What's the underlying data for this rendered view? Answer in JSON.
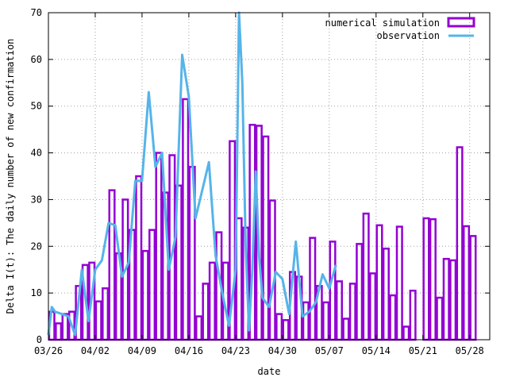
{
  "chart_data": {
    "type": "bar",
    "xlabel": "date",
    "ylabel": "Delta I(t): The daily number of new confirmation",
    "ylim": [
      0,
      70
    ],
    "yticks": [
      0,
      10,
      20,
      30,
      40,
      50,
      60,
      70
    ],
    "xlim_days": [
      0,
      66
    ],
    "xticks": [
      {
        "day": 0,
        "label": "03/26"
      },
      {
        "day": 7,
        "label": "04/02"
      },
      {
        "day": 14,
        "label": "04/09"
      },
      {
        "day": 21,
        "label": "04/16"
      },
      {
        "day": 28,
        "label": "04/23"
      },
      {
        "day": 35,
        "label": "04/30"
      },
      {
        "day": 42,
        "label": "05/07"
      },
      {
        "day": 49,
        "label": "05/14"
      },
      {
        "day": 56,
        "label": "05/21"
      },
      {
        "day": 63,
        "label": "05/28"
      }
    ],
    "grid": true,
    "legend_position": "top-right",
    "series": [
      {
        "name": "numerical simulation",
        "style": "boxes",
        "color": "#9400d3",
        "values": [
          6,
          3.5,
          5.5,
          6,
          11.5,
          16,
          16.5,
          8.2,
          11,
          32,
          18.5,
          30,
          23.5,
          35,
          19,
          23.5,
          40,
          31.5,
          39.5,
          33,
          51.5,
          37,
          5,
          12,
          16.5,
          23,
          16.5,
          42.5,
          26,
          24,
          46,
          45.8,
          43.5,
          29.8,
          5.5,
          4.2,
          14.5,
          13.5,
          8,
          21.8,
          11.5,
          8,
          21,
          12.5,
          4.5,
          12,
          20.5,
          27,
          14.2,
          24.5,
          19.5,
          9.5,
          24.2,
          2.8,
          10.5,
          0,
          26,
          25.8,
          9,
          17.3,
          17,
          41.2,
          24.3,
          22.2
        ]
      },
      {
        "name": "observation",
        "style": "line",
        "color": "#56b4e9",
        "points": [
          [
            0,
            1
          ],
          [
            0.5,
            7
          ],
          [
            1,
            6
          ],
          [
            2,
            5.5
          ],
          [
            3,
            5
          ],
          [
            4,
            1
          ],
          [
            5,
            15
          ],
          [
            6,
            4
          ],
          [
            7,
            15
          ],
          [
            8,
            17
          ],
          [
            9,
            25
          ],
          [
            10,
            24.5
          ],
          [
            11,
            13.5
          ],
          [
            12,
            16.5
          ],
          [
            13,
            34
          ],
          [
            14,
            34
          ],
          [
            15,
            53
          ],
          [
            16,
            37
          ],
          [
            17,
            40
          ],
          [
            18,
            15
          ],
          [
            19,
            22
          ],
          [
            20,
            61
          ],
          [
            21,
            52
          ],
          [
            22,
            26
          ],
          [
            23,
            32
          ],
          [
            24,
            38
          ],
          [
            25,
            18
          ],
          [
            26,
            10
          ],
          [
            27,
            3
          ],
          [
            28,
            15
          ],
          [
            28.5,
            70
          ],
          [
            29,
            55
          ],
          [
            29.5,
            20
          ],
          [
            30,
            2
          ],
          [
            30.5,
            15
          ],
          [
            31,
            36
          ],
          [
            31.5,
            18
          ],
          [
            32,
            9
          ],
          [
            33,
            7
          ],
          [
            34,
            14.5
          ],
          [
            35,
            13
          ],
          [
            36,
            5.5
          ],
          [
            37,
            21
          ],
          [
            38,
            5
          ],
          [
            39,
            6
          ],
          [
            40,
            8
          ],
          [
            41,
            14
          ],
          [
            42,
            11
          ],
          [
            43,
            16
          ]
        ]
      }
    ]
  }
}
